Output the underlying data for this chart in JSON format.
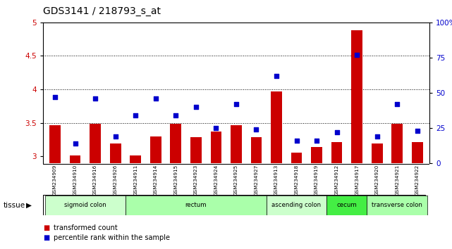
{
  "title": "GDS3141 / 218793_s_at",
  "samples": [
    "GSM234909",
    "GSM234910",
    "GSM234916",
    "GSM234926",
    "GSM234911",
    "GSM234914",
    "GSM234915",
    "GSM234923",
    "GSM234924",
    "GSM234925",
    "GSM234927",
    "GSM234913",
    "GSM234918",
    "GSM234919",
    "GSM234912",
    "GSM234917",
    "GSM234920",
    "GSM234921",
    "GSM234922"
  ],
  "bar_values": [
    3.47,
    3.01,
    3.49,
    3.19,
    3.01,
    3.3,
    3.49,
    3.29,
    3.37,
    3.47,
    3.29,
    3.97,
    3.06,
    3.14,
    3.21,
    4.88,
    3.19,
    3.49,
    3.21
  ],
  "dot_values_pct": [
    47,
    14,
    46,
    19,
    34,
    46,
    34,
    40,
    25,
    42,
    24,
    62,
    16,
    16,
    22,
    77,
    19,
    42,
    23
  ],
  "ylim_left": [
    2.9,
    5.0
  ],
  "ylim_right": [
    0,
    100
  ],
  "yticks_left": [
    3.0,
    3.5,
    4.0,
    4.5,
    5.0
  ],
  "yticks_right": [
    0,
    25,
    50,
    75,
    100
  ],
  "ytick_labels_left": [
    "3",
    "3.5",
    "4",
    "4.5",
    "5"
  ],
  "ytick_labels_right": [
    "0",
    "25",
    "50",
    "75",
    "100%"
  ],
  "dotted_lines": [
    3.5,
    4.0,
    4.5
  ],
  "bar_color": "#cc0000",
  "dot_color": "#0000cc",
  "tissue_groups": [
    {
      "label": "sigmoid colon",
      "start": 0,
      "end": 3,
      "color": "#ccffcc"
    },
    {
      "label": "rectum",
      "start": 4,
      "end": 10,
      "color": "#aaffaa"
    },
    {
      "label": "ascending colon",
      "start": 11,
      "end": 13,
      "color": "#ccffcc"
    },
    {
      "label": "cecum",
      "start": 14,
      "end": 15,
      "color": "#44ee44"
    },
    {
      "label": "transverse colon",
      "start": 16,
      "end": 18,
      "color": "#aaffaa"
    }
  ],
  "legend_bar_label": "transformed count",
  "legend_dot_label": "percentile rank within the sample",
  "tissue_label": "tissue",
  "background_color": "#ffffff",
  "plot_bg_color": "#ffffff",
  "xlabel_area_color": "#cccccc"
}
